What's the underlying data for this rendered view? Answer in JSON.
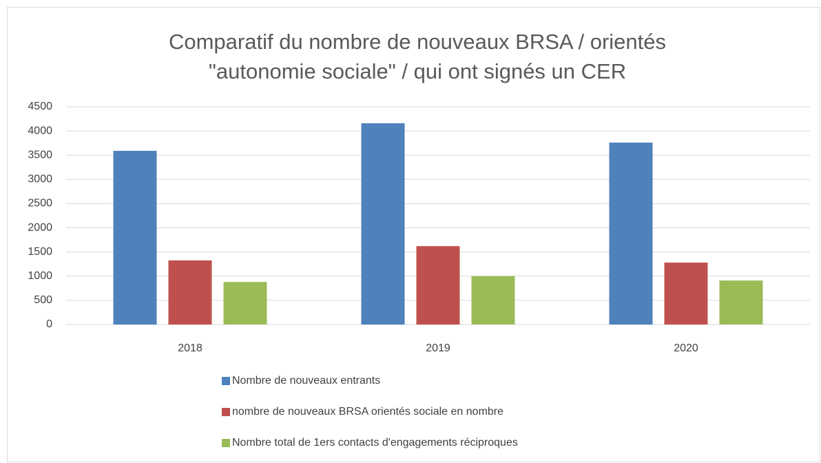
{
  "chart_data": {
    "type": "bar",
    "title": [
      "Comparatif du nombre de nouveaux BRSA / orientés",
      "\"autonomie sociale\" / qui ont signés un CER"
    ],
    "categories": [
      "2018",
      "2019",
      "2020"
    ],
    "series": [
      {
        "name": "Nombre de nouveaux entrants",
        "color": "#4f81bd",
        "values": [
          3590,
          4160,
          3760
        ]
      },
      {
        "name": "nombre de nouveaux BRSA orientés sociale en nombre",
        "color": "#c0504d",
        "values": [
          1325,
          1620,
          1280
        ]
      },
      {
        "name": "Nombre total de 1ers contacts d'engagements réciproques",
        "color": "#9bbb59",
        "values": [
          880,
          1000,
          910
        ]
      }
    ],
    "ylim": [
      0,
      4500
    ],
    "yticks": [
      0,
      500,
      1000,
      1500,
      2000,
      2500,
      3000,
      3500,
      4000,
      4500
    ],
    "grid": true,
    "legend": "bottom"
  }
}
